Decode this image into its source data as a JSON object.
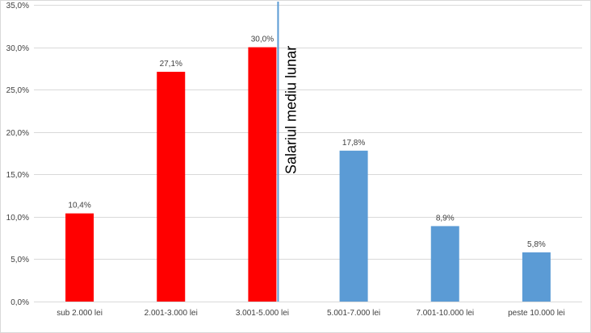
{
  "chart_data": {
    "type": "bar",
    "categories": [
      "sub 2.000 lei",
      "2.001-3.000 lei",
      "3.001-5.000 lei",
      "5.001-7.000 lei",
      "7.001-10.000 lei",
      "peste 10.000 lei"
    ],
    "values": [
      10.4,
      27.1,
      30.0,
      17.8,
      8.9,
      5.8
    ],
    "value_labels": [
      "10,4%",
      "27,1%",
      "30,0%",
      "17,8%",
      "8,9%",
      "5,8%"
    ],
    "bar_colors": [
      "#ff0000",
      "#ff0000",
      "#ff0000",
      "#5b9bd5",
      "#5b9bd5",
      "#5b9bd5"
    ],
    "ylim": [
      0,
      35
    ],
    "y_ticks": [
      0,
      5,
      10,
      15,
      20,
      25,
      30,
      35
    ],
    "y_tick_labels": [
      "0,0%",
      "5,0%",
      "10,0%",
      "15,0%",
      "20,0%",
      "25,0%",
      "30,0%",
      "35,0%"
    ],
    "grid": true,
    "title": "",
    "xlabel": "",
    "ylabel": "",
    "reference_line": {
      "label": "Salariul mediu lunar",
      "between_categories": [
        "3.001-5.000 lei",
        "5.001-7.000 lei"
      ],
      "color": "#5b9bd5"
    }
  }
}
